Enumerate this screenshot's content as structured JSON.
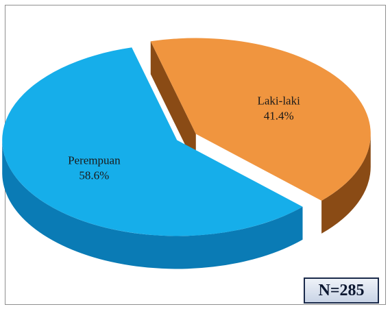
{
  "chart_data": {
    "type": "pie",
    "style": "3d-exploded",
    "slices": [
      {
        "label": "Laki-laki",
        "value": 41.4,
        "value_label": "41.4%",
        "color": "#f0953f",
        "side_color": "#8a4b15"
      },
      {
        "label": "Perempuan",
        "value": 58.6,
        "value_label": "58.6%",
        "color": "#16aeea",
        "side_color": "#0a7bb5"
      }
    ]
  },
  "annotation": {
    "text": "N=285"
  }
}
